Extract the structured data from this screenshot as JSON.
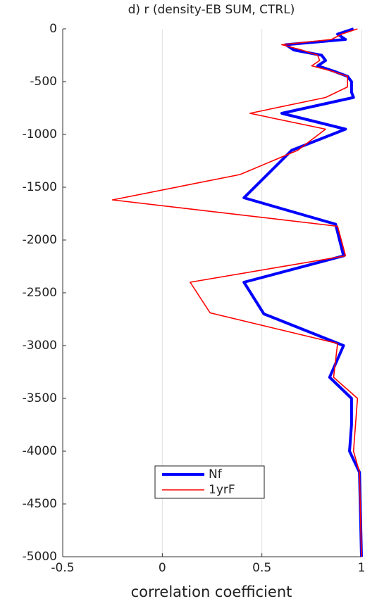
{
  "chart_data": {
    "type": "line",
    "title": "d) r (density-EB SUM, CTRL)",
    "xlabel": "correlation coefficient",
    "xlim": [
      -0.5,
      1
    ],
    "xticks": [
      -0.5,
      0,
      0.5,
      1
    ],
    "ylim": [
      -5000,
      0
    ],
    "yticks": [
      0,
      -500,
      -1000,
      -1500,
      -2000,
      -2500,
      -3000,
      -3500,
      -4000,
      -4500,
      -5000
    ],
    "grid": true,
    "legend": "lower-center",
    "series": [
      {
        "name": "Nf",
        "color": "#0000ff",
        "y": [
          0,
          -50,
          -100,
          -150,
          -200,
          -250,
          -300,
          -350,
          -400,
          -450,
          -500,
          -550,
          -600,
          -650,
          -800,
          -950,
          -1150,
          -1600,
          -1850,
          -2150,
          -2400,
          -2700,
          -3000,
          -3300,
          -3500,
          -3750,
          -4000,
          -4200,
          -5000
        ],
        "values": [
          0.96,
          0.88,
          0.92,
          0.62,
          0.66,
          0.8,
          0.82,
          0.78,
          0.86,
          0.93,
          0.95,
          0.95,
          0.95,
          0.96,
          0.6,
          0.92,
          0.65,
          0.41,
          0.87,
          0.91,
          0.41,
          0.51,
          0.91,
          0.84,
          0.95,
          0.95,
          0.94,
          0.99,
          1.0
        ]
      },
      {
        "name": "1yrF",
        "color": "#ff0000",
        "y": [
          0,
          -50,
          -100,
          -150,
          -200,
          -250,
          -300,
          -350,
          -400,
          -450,
          -500,
          -550,
          -650,
          -800,
          -950,
          -1150,
          -1380,
          -1620,
          -1870,
          -2150,
          -2400,
          -2690,
          -2980,
          -3300,
          -3500,
          -3750,
          -4000,
          -4200,
          -5000
        ],
        "values": [
          0.98,
          0.9,
          0.85,
          0.6,
          0.7,
          0.78,
          0.79,
          0.75,
          0.85,
          0.93,
          0.93,
          0.93,
          0.82,
          0.44,
          0.82,
          0.68,
          0.39,
          -0.25,
          0.88,
          0.92,
          0.14,
          0.24,
          0.88,
          0.86,
          0.98,
          0.97,
          0.96,
          0.99,
          1.0
        ]
      }
    ]
  }
}
